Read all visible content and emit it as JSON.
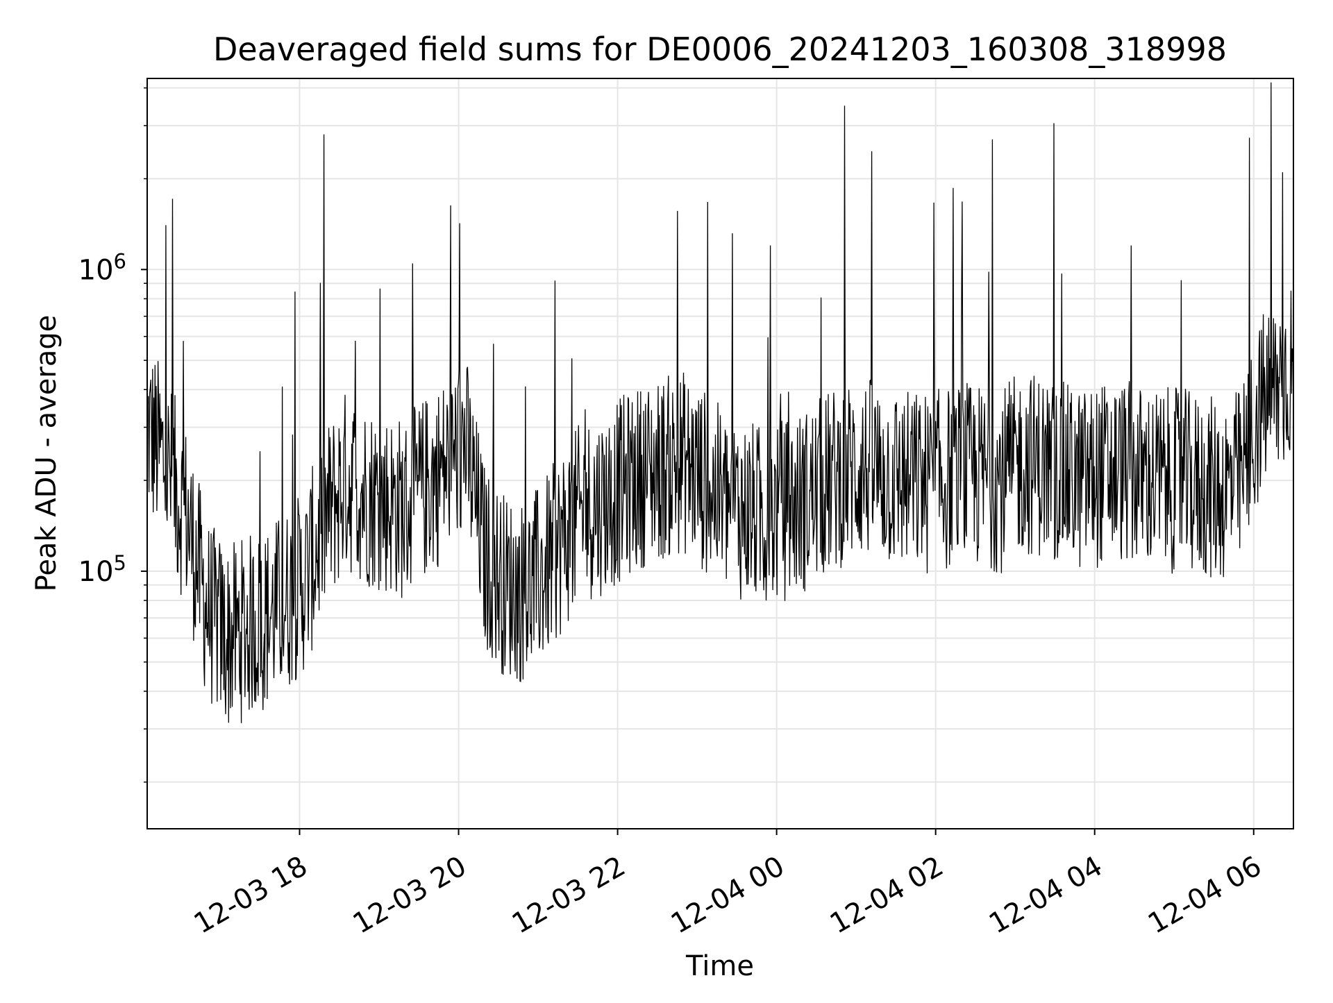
{
  "chart_data": {
    "type": "line",
    "title": "Deaveraged field sums for DE0006_20241203_160308_318998",
    "xlabel": "Time",
    "ylabel": "Peak ADU - average",
    "yscale": "log",
    "grid": true,
    "line_color": "#000000",
    "grid_color": "#e5e5e5",
    "xlim": [
      "2024-12-03 16:05",
      "2024-12-04 06:30"
    ],
    "ylim": [
      14000,
      4300000
    ],
    "x_ticks": [
      {
        "value": "2024-12-03 18:00",
        "label": "12-03 18"
      },
      {
        "value": "2024-12-03 20:00",
        "label": "12-03 20"
      },
      {
        "value": "2024-12-03 22:00",
        "label": "12-03 22"
      },
      {
        "value": "2024-12-04 00:00",
        "label": "12-04 00"
      },
      {
        "value": "2024-12-04 02:00",
        "label": "12-04 02"
      },
      {
        "value": "2024-12-04 04:00",
        "label": "12-04 04"
      },
      {
        "value": "2024-12-04 06:00",
        "label": "12-04 06"
      }
    ],
    "y_ticks": [
      {
        "value": 100000,
        "base": "10",
        "exp": "5"
      },
      {
        "value": 1000000,
        "base": "10",
        "exp": "6"
      }
    ],
    "series": [
      {
        "x": [
          "2024-12-03 16:05",
          "2024-12-03 16:20",
          "2024-12-03 16:35",
          "2024-12-03 16:50",
          "2024-12-03 17:05",
          "2024-12-03 17:20",
          "2024-12-03 17:35",
          "2024-12-03 17:50",
          "2024-12-03 18:05",
          "2024-12-03 18:20",
          "2024-12-03 18:35",
          "2024-12-03 18:50",
          "2024-12-03 19:05",
          "2024-12-03 19:20",
          "2024-12-03 19:35",
          "2024-12-03 19:50",
          "2024-12-03 20:05",
          "2024-12-03 20:20",
          "2024-12-03 20:35",
          "2024-12-03 20:50",
          "2024-12-03 21:05",
          "2024-12-03 21:20",
          "2024-12-03 21:35",
          "2024-12-03 21:50",
          "2024-12-03 22:05",
          "2024-12-03 22:20",
          "2024-12-03 22:35",
          "2024-12-03 22:50",
          "2024-12-03 23:05",
          "2024-12-03 23:20",
          "2024-12-03 23:35",
          "2024-12-03 23:50",
          "2024-12-04 00:05",
          "2024-12-04 00:20",
          "2024-12-04 00:35",
          "2024-12-04 00:50",
          "2024-12-04 01:05",
          "2024-12-04 01:20",
          "2024-12-04 01:35",
          "2024-12-04 01:50",
          "2024-12-04 02:05",
          "2024-12-04 02:20",
          "2024-12-04 02:35",
          "2024-12-04 02:50",
          "2024-12-04 03:05",
          "2024-12-04 03:20",
          "2024-12-04 03:35",
          "2024-12-04 03:50",
          "2024-12-04 04:05",
          "2024-12-04 04:20",
          "2024-12-04 04:35",
          "2024-12-04 04:50",
          "2024-12-04 05:05",
          "2024-12-04 05:20",
          "2024-12-04 05:35",
          "2024-12-04 05:50",
          "2024-12-04 06:05",
          "2024-12-04 06:20",
          "2024-12-04 06:30"
        ],
        "y": [
          300000,
          220000,
          150000,
          75000,
          60000,
          65000,
          70000,
          80000,
          95000,
          150000,
          200000,
          180000,
          170000,
          160000,
          190000,
          220000,
          270000,
          110000,
          90000,
          85000,
          100000,
          130000,
          160000,
          170000,
          190000,
          210000,
          220000,
          230000,
          200000,
          170000,
          160000,
          150000,
          160000,
          170000,
          190000,
          210000,
          220000,
          210000,
          200000,
          195000,
          200000,
          210000,
          205000,
          200000,
          230000,
          225000,
          210000,
          200000,
          210000,
          215000,
          205000,
          200000,
          200000,
          190000,
          185000,
          200000,
          350000,
          420000,
          500000
        ]
      }
    ]
  }
}
